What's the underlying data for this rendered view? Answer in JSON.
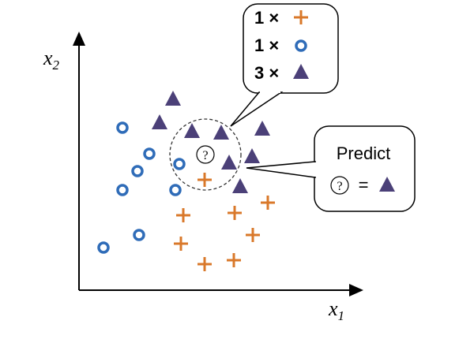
{
  "axes": {
    "x_label": {
      "base": "x",
      "sub": "1"
    },
    "y_label": {
      "base": "x",
      "sub": "2"
    }
  },
  "query": "?",
  "neighbor_counts": [
    "1 ×",
    "1 ×",
    "3 ×"
  ],
  "predict": {
    "title": "Predict",
    "query": "?",
    "equals": "="
  }
}
